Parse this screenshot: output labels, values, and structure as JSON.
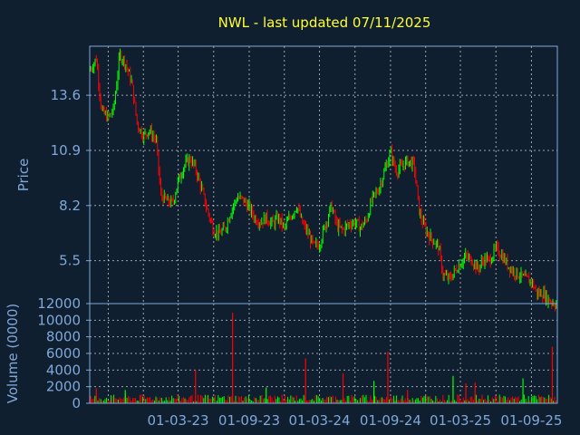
{
  "chart_data": [
    {
      "type": "line",
      "title": "NWL - last updated 07/11/2025",
      "ylabel": "Price",
      "ylim": [
        3.4,
        16.0
      ],
      "yticks": [
        "13.6",
        "10.9",
        "8.2",
        "5.5"
      ],
      "x_range": [
        "2022-07-15",
        "2025-11-07"
      ],
      "grid": true,
      "colors": {
        "up": "#00ff00",
        "down": "#ff0000",
        "background": "#0f1f2f",
        "text": "#7fa8d8",
        "title": "#ffff33"
      },
      "x": [
        "2022-07-15",
        "2022-08-01",
        "2022-08-15",
        "2022-09-01",
        "2022-09-15",
        "2022-10-01",
        "2022-10-15",
        "2022-11-01",
        "2022-11-15",
        "2022-12-01",
        "2022-12-15",
        "2023-01-03",
        "2023-01-15",
        "2023-02-01",
        "2023-02-15",
        "2023-03-01",
        "2023-03-15",
        "2023-04-01",
        "2023-04-15",
        "2023-05-01",
        "2023-05-15",
        "2023-06-01",
        "2023-06-15",
        "2023-07-01",
        "2023-07-15",
        "2023-08-01",
        "2023-08-15",
        "2023-09-01",
        "2023-09-15",
        "2023-10-01",
        "2023-10-15",
        "2023-11-01",
        "2023-11-15",
        "2023-12-01",
        "2023-12-15",
        "2024-01-03",
        "2024-01-15",
        "2024-02-01",
        "2024-02-15",
        "2024-03-01",
        "2024-03-15",
        "2024-04-01",
        "2024-04-15",
        "2024-05-01",
        "2024-05-15",
        "2024-06-01",
        "2024-06-15",
        "2024-07-01",
        "2024-07-15",
        "2024-08-01",
        "2024-08-15",
        "2024-09-01",
        "2024-09-15",
        "2024-10-01",
        "2024-10-15",
        "2024-11-01",
        "2024-11-15",
        "2024-12-01",
        "2024-12-15",
        "2025-01-03",
        "2025-01-15",
        "2025-02-01",
        "2025-02-15",
        "2025-03-01",
        "2025-03-15",
        "2025-04-01",
        "2025-04-15",
        "2025-05-01",
        "2025-05-15",
        "2025-06-01",
        "2025-06-15",
        "2025-07-01",
        "2025-07-15",
        "2025-08-01",
        "2025-08-15",
        "2025-09-01",
        "2025-09-15",
        "2025-10-01",
        "2025-10-15",
        "2025-11-01",
        "2025-11-07"
      ],
      "values": [
        14.8,
        15.4,
        12.8,
        12.5,
        12.9,
        15.6,
        15.2,
        14.2,
        12.2,
        11.6,
        11.9,
        11.4,
        8.7,
        8.4,
        8.3,
        9.4,
        10.1,
        10.5,
        10.0,
        9.0,
        8.0,
        7.0,
        6.8,
        7.1,
        7.9,
        8.6,
        8.5,
        8.1,
        7.6,
        7.4,
        7.6,
        7.3,
        7.6,
        7.1,
        7.6,
        8.2,
        7.4,
        6.8,
        6.2,
        6.3,
        7.2,
        8.2,
        7.2,
        7.0,
        7.3,
        7.4,
        7.1,
        7.5,
        8.5,
        9.0,
        9.8,
        10.8,
        9.9,
        10.1,
        10.4,
        10.2,
        7.8,
        7.0,
        6.6,
        6.2,
        4.8,
        4.6,
        5.0,
        5.4,
        5.7,
        5.5,
        5.1,
        5.6,
        5.5,
        6.1,
        5.8,
        5.3,
        5.0,
        4.8,
        4.6,
        4.5,
        3.9,
        3.9,
        3.6,
        3.4,
        3.4
      ]
    },
    {
      "type": "bar",
      "ylabel": "Volume (0000)",
      "ylim": [
        0,
        12000
      ],
      "yticks": [
        "12000",
        "10000",
        "8000",
        "6000",
        "4000",
        "2000",
        "0"
      ],
      "xticks": [
        "01-03-23",
        "01-09-23",
        "01-03-24",
        "01-09-24",
        "01-03-25",
        "01-09-25"
      ],
      "x": [
        "2022-08-01",
        "2022-10-15",
        "2023-04-15",
        "2023-07-20",
        "2023-10-15",
        "2024-01-25",
        "2024-05-01",
        "2024-07-20",
        "2024-08-25",
        "2024-10-15",
        "2025-02-10",
        "2025-03-15",
        "2025-04-08",
        "2025-08-10",
        "2025-10-25"
      ],
      "values": [
        1800,
        1600,
        4000,
        10900,
        1900,
        5400,
        3600,
        2700,
        6200,
        1600,
        3300,
        2400,
        2500,
        3000,
        6800
      ],
      "baseline": 700
    }
  ]
}
